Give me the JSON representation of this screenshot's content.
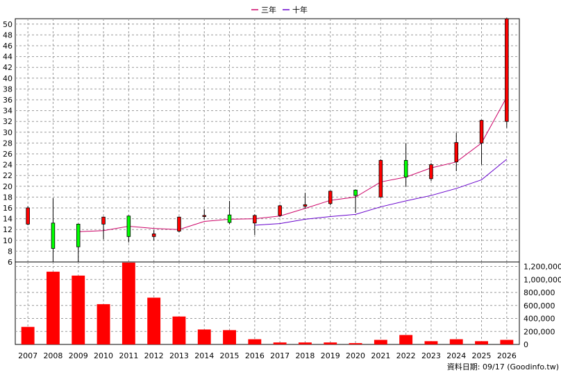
{
  "chart_data": [
    {
      "type": "candlestick",
      "legend_placement": "top-center",
      "grid": true,
      "categories": [
        "2007",
        "2008",
        "2009",
        "2010",
        "2011",
        "2012",
        "2013",
        "2014",
        "2015",
        "2016",
        "2017",
        "2018",
        "2019",
        "2020",
        "2021",
        "2022",
        "2023",
        "2024",
        "2025",
        "2026"
      ],
      "ylim": [
        6,
        51
      ],
      "yticks": [
        6,
        8,
        10,
        12,
        14,
        16,
        18,
        20,
        22,
        24,
        26,
        28,
        30,
        32,
        34,
        36,
        38,
        40,
        42,
        44,
        46,
        48,
        50
      ],
      "candles": [
        {
          "open": 13.0,
          "close": 16.0,
          "high": 16.3,
          "low": 12.8
        },
        {
          "open": 13.2,
          "close": 8.5,
          "high": 17.8,
          "low": 6.0
        },
        {
          "open": 13.0,
          "close": 8.8,
          "high": 13.1,
          "low": 6.0
        },
        {
          "open": 13.0,
          "close": 14.3,
          "high": 14.4,
          "low": 10.2
        },
        {
          "open": 14.5,
          "close": 10.7,
          "high": 14.6,
          "low": 9.6
        },
        {
          "open": 10.7,
          "close": 11.2,
          "high": 11.9,
          "low": 10.0
        },
        {
          "open": 11.7,
          "close": 14.3,
          "high": 14.4,
          "low": 11.5
        },
        {
          "open": 14.4,
          "close": 14.6,
          "high": 15.8,
          "low": 13.9
        },
        {
          "open": 14.7,
          "close": 13.3,
          "high": 17.3,
          "low": 13.0
        },
        {
          "open": 13.2,
          "close": 14.6,
          "high": 14.8,
          "low": 11.0
        },
        {
          "open": 14.6,
          "close": 16.4,
          "high": 16.6,
          "low": 14.3
        },
        {
          "open": 16.3,
          "close": 16.6,
          "high": 18.8,
          "low": 15.9
        },
        {
          "open": 16.8,
          "close": 19.1,
          "high": 19.2,
          "low": 16.5
        },
        {
          "open": 19.3,
          "close": 18.3,
          "high": 19.4,
          "low": 15.1
        },
        {
          "open": 18.0,
          "close": 24.8,
          "high": 25.0,
          "low": 17.9
        },
        {
          "open": 24.8,
          "close": 21.7,
          "high": 28.0,
          "low": 19.9
        },
        {
          "open": 21.4,
          "close": 24.0,
          "high": 24.3,
          "low": 21.0
        },
        {
          "open": 24.5,
          "close": 28.1,
          "high": 29.9,
          "low": 22.8
        },
        {
          "open": 28.0,
          "close": 32.2,
          "high": 32.3,
          "low": 24.0
        },
        {
          "open": 32.0,
          "close": 51.0,
          "high": 51.2,
          "low": 30.8
        }
      ],
      "series": [
        {
          "name": "三年",
          "color": "#cc0066",
          "values": [
            null,
            null,
            11.6,
            11.8,
            12.6,
            12.2,
            12.0,
            13.5,
            13.9,
            14.0,
            14.5,
            15.9,
            17.4,
            18.0,
            20.8,
            21.7,
            23.4,
            24.5,
            28.0,
            36.5
          ]
        },
        {
          "name": "十年",
          "color": "#6600cc",
          "values": [
            null,
            null,
            null,
            null,
            null,
            null,
            null,
            null,
            null,
            12.8,
            13.1,
            13.9,
            14.4,
            14.8,
            16.2,
            17.3,
            18.3,
            19.6,
            21.2,
            25.0
          ]
        }
      ]
    },
    {
      "type": "bar",
      "categories": [
        "2007",
        "2008",
        "2009",
        "2010",
        "2011",
        "2012",
        "2013",
        "2014",
        "2015",
        "2016",
        "2017",
        "2018",
        "2019",
        "2020",
        "2021",
        "2022",
        "2023",
        "2024",
        "2025",
        "2026"
      ],
      "values": [
        270000,
        1120000,
        1060000,
        620000,
        1260000,
        720000,
        430000,
        230000,
        220000,
        80000,
        30000,
        30000,
        30000,
        20000,
        70000,
        145000,
        50000,
        80000,
        50000,
        70000
      ],
      "ylim": [
        0,
        1270000
      ],
      "yticks": [
        "0",
        "200,000",
        "400,000",
        "600,000",
        "800,000",
        "1,000,000",
        "1,200,000"
      ],
      "ytick_values": [
        0,
        200000,
        400000,
        600000,
        800000,
        1000000,
        1200000
      ],
      "color": "#ff0000"
    }
  ],
  "footer": {
    "caption": "資料日期: 09/17  (Goodinfo.tw)"
  }
}
